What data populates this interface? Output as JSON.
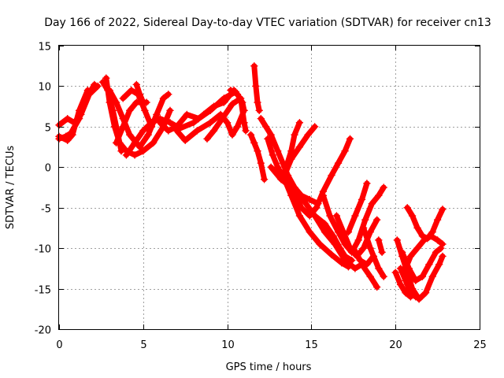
{
  "chart_data": {
    "type": "scatter",
    "marker": "plus",
    "title": "Day 166 of 2022, Sidereal Day-to-day VTEC variation (SDTVAR) for receiver cn13",
    "xlabel": "GPS time / hours",
    "ylabel": "SDTVAR / TECUs",
    "xlim": [
      0,
      25
    ],
    "ylim": [
      -20,
      15
    ],
    "xticks": [
      0,
      5,
      10,
      15,
      20,
      25
    ],
    "yticks": [
      -20,
      -15,
      -10,
      -5,
      0,
      5,
      10,
      15
    ],
    "grid": true,
    "series_color": "#ff0000",
    "tracks": [
      {
        "name": "t1",
        "points": [
          [
            0.0,
            3.5
          ],
          [
            0.4,
            3.8
          ],
          [
            0.7,
            4.2
          ],
          [
            1.2,
            6.0
          ],
          [
            1.6,
            8.5
          ],
          [
            2.1,
            10.2
          ]
        ]
      },
      {
        "name": "t2",
        "points": [
          [
            0.0,
            5.2
          ],
          [
            0.5,
            6.0
          ],
          [
            0.9,
            5.5
          ],
          [
            1.3,
            6.5
          ],
          [
            1.8,
            9.0
          ],
          [
            2.3,
            10.0
          ]
        ]
      },
      {
        "name": "t3",
        "points": [
          [
            0.0,
            3.8
          ],
          [
            0.5,
            3.3
          ],
          [
            0.8,
            4.0
          ],
          [
            1.2,
            7.0
          ],
          [
            1.7,
            9.5
          ]
        ]
      },
      {
        "name": "t4",
        "points": [
          [
            2.6,
            10.5
          ],
          [
            2.9,
            9.5
          ],
          [
            3.2,
            7.0
          ],
          [
            3.5,
            4.0
          ],
          [
            3.7,
            2.0
          ]
        ]
      },
      {
        "name": "t5",
        "points": [
          [
            2.8,
            11.0
          ],
          [
            3.0,
            8.0
          ],
          [
            3.3,
            5.0
          ],
          [
            3.6,
            3.0
          ],
          [
            4.0,
            2.0
          ],
          [
            4.5,
            1.5
          ],
          [
            5.0,
            2.0
          ],
          [
            5.6,
            3.0
          ],
          [
            6.2,
            5.0
          ],
          [
            6.6,
            7.0
          ]
        ]
      },
      {
        "name": "t6",
        "points": [
          [
            3.0,
            9.5
          ],
          [
            3.4,
            8.0
          ],
          [
            3.8,
            6.0
          ],
          [
            4.2,
            4.0
          ],
          [
            4.8,
            2.5
          ],
          [
            5.3,
            4.0
          ],
          [
            5.8,
            6.5
          ],
          [
            6.2,
            8.5
          ],
          [
            6.5,
            9.0
          ]
        ]
      },
      {
        "name": "t7",
        "points": [
          [
            3.4,
            3.0
          ],
          [
            3.8,
            5.0
          ],
          [
            4.2,
            7.0
          ],
          [
            4.6,
            8.0
          ],
          [
            5.0,
            8.0
          ]
        ]
      },
      {
        "name": "t8",
        "points": [
          [
            3.8,
            8.5
          ],
          [
            4.3,
            9.5
          ],
          [
            4.7,
            9.0
          ],
          [
            5.1,
            7.0
          ],
          [
            5.5,
            5.0
          ]
        ]
      },
      {
        "name": "t9",
        "points": [
          [
            4.6,
            10.2
          ],
          [
            4.8,
            9.0
          ],
          [
            5.0,
            8.0
          ],
          [
            5.2,
            8.0
          ]
        ]
      },
      {
        "name": "t10",
        "points": [
          [
            4.0,
            1.5
          ],
          [
            4.5,
            3.0
          ],
          [
            5.0,
            4.5
          ],
          [
            5.5,
            5.5
          ],
          [
            6.0,
            6.0
          ],
          [
            6.6,
            5.5
          ],
          [
            7.2,
            4.8
          ],
          [
            8.0,
            5.5
          ],
          [
            8.6,
            6.5
          ],
          [
            9.2,
            7.5
          ],
          [
            9.8,
            8.0
          ],
          [
            10.4,
            9.5
          ]
        ]
      },
      {
        "name": "t11",
        "points": [
          [
            6.0,
            5.5
          ],
          [
            6.5,
            4.5
          ],
          [
            7.0,
            5.0
          ],
          [
            7.6,
            6.5
          ],
          [
            8.3,
            6.0
          ],
          [
            9.0,
            7.0
          ],
          [
            9.8,
            8.5
          ],
          [
            10.5,
            9.3
          ]
        ]
      },
      {
        "name": "t12",
        "points": [
          [
            7.0,
            4.5
          ],
          [
            7.5,
            3.3
          ],
          [
            8.2,
            4.5
          ],
          [
            9.0,
            5.5
          ],
          [
            9.6,
            6.5
          ],
          [
            10.0,
            5.5
          ],
          [
            10.3,
            4.0
          ],
          [
            10.6,
            5.0
          ],
          [
            11.0,
            7.0
          ]
        ]
      },
      {
        "name": "t13",
        "points": [
          [
            8.8,
            3.5
          ],
          [
            9.2,
            4.5
          ],
          [
            9.7,
            6.0
          ],
          [
            10.3,
            7.8
          ],
          [
            10.8,
            8.5
          ],
          [
            11.0,
            5.5
          ],
          [
            11.1,
            4.5
          ]
        ]
      },
      {
        "name": "t14",
        "points": [
          [
            10.2,
            9.5
          ],
          [
            10.6,
            9.0
          ],
          [
            10.9,
            8.0
          ],
          [
            11.0,
            7.0
          ]
        ]
      },
      {
        "name": "t15",
        "points": [
          [
            11.6,
            12.5
          ],
          [
            11.7,
            10.0
          ],
          [
            11.8,
            8.0
          ],
          [
            11.9,
            7.0
          ]
        ]
      },
      {
        "name": "t16",
        "points": [
          [
            11.4,
            4.0
          ],
          [
            11.6,
            3.0
          ],
          [
            11.8,
            2.0
          ],
          [
            12.0,
            0.5
          ],
          [
            12.2,
            -1.5
          ]
        ]
      },
      {
        "name": "t17",
        "points": [
          [
            12.0,
            6.0
          ],
          [
            12.3,
            5.0
          ],
          [
            12.6,
            4.0
          ],
          [
            13.0,
            2.0
          ],
          [
            13.3,
            0.5
          ],
          [
            13.6,
            -1.0
          ],
          [
            14.0,
            -2.5
          ],
          [
            14.4,
            -3.5
          ],
          [
            14.9,
            -4.0
          ],
          [
            15.4,
            -4.5
          ]
        ]
      },
      {
        "name": "t18",
        "points": [
          [
            12.4,
            3.5
          ],
          [
            12.7,
            1.5
          ],
          [
            13.0,
            0.0
          ],
          [
            13.4,
            -1.5
          ],
          [
            13.8,
            -3.5
          ],
          [
            14.3,
            -6.0
          ],
          [
            14.9,
            -8.0
          ],
          [
            15.5,
            -9.5
          ],
          [
            16.2,
            -10.8
          ],
          [
            16.8,
            -11.8
          ],
          [
            17.2,
            -12.3
          ]
        ]
      },
      {
        "name": "t19",
        "points": [
          [
            12.6,
            0.0
          ],
          [
            13.2,
            -1.5
          ],
          [
            13.8,
            -2.5
          ],
          [
            14.5,
            -4.0
          ],
          [
            15.2,
            -6.0
          ],
          [
            15.8,
            -8.0
          ],
          [
            16.4,
            -9.5
          ],
          [
            17.0,
            -11.5
          ],
          [
            17.6,
            -12.5
          ],
          [
            18.0,
            -12.0
          ],
          [
            18.5,
            -13.5
          ],
          [
            18.9,
            -14.8
          ]
        ]
      },
      {
        "name": "t20",
        "points": [
          [
            13.2,
            -1.5
          ],
          [
            13.5,
            0.0
          ],
          [
            13.8,
            2.0
          ],
          [
            14.0,
            4.0
          ],
          [
            14.3,
            5.5
          ]
        ]
      },
      {
        "name": "t21",
        "points": [
          [
            13.4,
            -1.0
          ],
          [
            13.8,
            1.0
          ],
          [
            14.3,
            2.5
          ],
          [
            14.8,
            4.0
          ],
          [
            15.2,
            5.0
          ]
        ]
      },
      {
        "name": "t22",
        "points": [
          [
            14.0,
            -3.0
          ],
          [
            14.4,
            -5.0
          ],
          [
            14.9,
            -6.0
          ],
          [
            15.3,
            -5.0
          ],
          [
            15.7,
            -3.0
          ],
          [
            16.2,
            -1.0
          ],
          [
            16.6,
            0.5
          ],
          [
            17.0,
            2.0
          ],
          [
            17.3,
            3.5
          ]
        ]
      },
      {
        "name": "t23",
        "points": [
          [
            15.2,
            -6.0
          ],
          [
            15.8,
            -7.0
          ],
          [
            16.3,
            -8.5
          ],
          [
            16.7,
            -10.0
          ],
          [
            17.0,
            -11.0
          ],
          [
            17.4,
            -11.5
          ]
        ]
      },
      {
        "name": "t24",
        "points": [
          [
            15.7,
            -3.5
          ],
          [
            16.1,
            -6.0
          ],
          [
            16.6,
            -8.0
          ],
          [
            17.0,
            -9.5
          ],
          [
            17.4,
            -10.5
          ],
          [
            17.8,
            -9.0
          ],
          [
            18.2,
            -6.5
          ],
          [
            18.6,
            -4.5
          ],
          [
            19.0,
            -3.5
          ],
          [
            19.3,
            -2.5
          ]
        ]
      },
      {
        "name": "t25",
        "points": [
          [
            16.5,
            -6.0
          ],
          [
            16.9,
            -8.0
          ],
          [
            17.3,
            -10.0
          ],
          [
            17.7,
            -11.0
          ],
          [
            18.1,
            -10.0
          ],
          [
            18.5,
            -8.0
          ],
          [
            18.9,
            -6.5
          ]
        ]
      },
      {
        "name": "t26",
        "points": [
          [
            17.2,
            -8.0
          ],
          [
            17.6,
            -6.0
          ],
          [
            18.0,
            -4.0
          ],
          [
            18.3,
            -2.0
          ]
        ]
      },
      {
        "name": "t27",
        "points": [
          [
            17.5,
            -10.0
          ],
          [
            17.9,
            -11.5
          ],
          [
            18.3,
            -12.0
          ],
          [
            18.7,
            -11.0
          ]
        ]
      },
      {
        "name": "t28",
        "points": [
          [
            18.1,
            -7.5
          ],
          [
            18.5,
            -10.0
          ],
          [
            19.0,
            -12.5
          ],
          [
            19.3,
            -13.5
          ]
        ]
      },
      {
        "name": "t29",
        "points": [
          [
            19.0,
            -9.0
          ],
          [
            19.2,
            -10.5
          ]
        ]
      },
      {
        "name": "t30",
        "points": [
          [
            20.1,
            -9.0
          ],
          [
            20.4,
            -11.0
          ],
          [
            20.7,
            -13.0
          ],
          [
            21.0,
            -15.0
          ],
          [
            21.4,
            -16.3
          ],
          [
            21.8,
            -15.5
          ],
          [
            22.2,
            -13.5
          ],
          [
            22.6,
            -12.0
          ],
          [
            22.8,
            -11.0
          ]
        ]
      },
      {
        "name": "t31",
        "points": [
          [
            20.3,
            -12.5
          ],
          [
            20.6,
            -14.0
          ],
          [
            20.9,
            -15.5
          ],
          [
            21.2,
            -16.0
          ]
        ]
      },
      {
        "name": "t32",
        "points": [
          [
            20.5,
            -13.0
          ],
          [
            20.9,
            -11.0
          ],
          [
            21.3,
            -10.0
          ],
          [
            21.7,
            -9.0
          ],
          [
            22.1,
            -8.5
          ],
          [
            22.5,
            -9.0
          ],
          [
            22.8,
            -9.5
          ]
        ]
      },
      {
        "name": "t33",
        "points": [
          [
            20.7,
            -5.0
          ],
          [
            21.0,
            -6.0
          ],
          [
            21.3,
            -7.5
          ],
          [
            21.6,
            -8.5
          ],
          [
            21.9,
            -8.8
          ],
          [
            22.2,
            -8.0
          ],
          [
            22.5,
            -6.5
          ],
          [
            22.8,
            -5.2
          ]
        ]
      },
      {
        "name": "t34",
        "points": [
          [
            20.4,
            -10.5
          ],
          [
            20.8,
            -12.5
          ],
          [
            21.2,
            -14.0
          ],
          [
            21.6,
            -13.5
          ],
          [
            22.0,
            -12.0
          ],
          [
            22.4,
            -10.5
          ],
          [
            22.7,
            -10.0
          ]
        ]
      },
      {
        "name": "t35",
        "points": [
          [
            20.0,
            -13.0
          ],
          [
            20.3,
            -14.5
          ],
          [
            20.6,
            -15.5
          ],
          [
            20.9,
            -16.0
          ]
        ]
      }
    ]
  }
}
